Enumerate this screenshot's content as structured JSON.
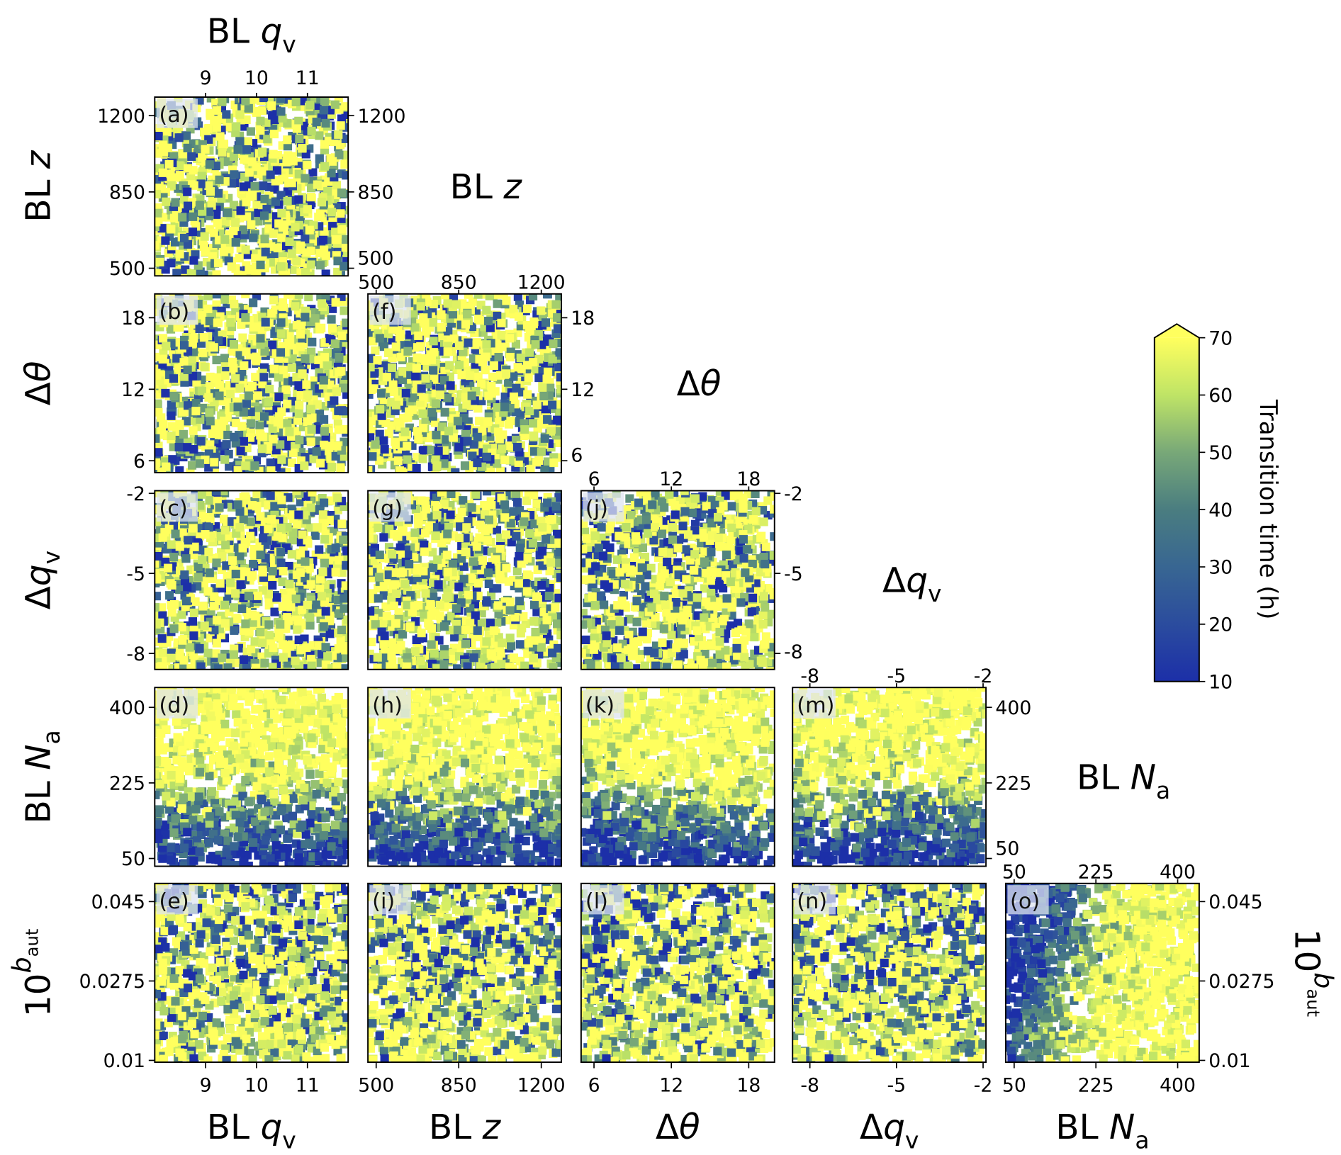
{
  "chart_data": {
    "type": "scatter",
    "layout": "corner-plot",
    "variables": [
      {
        "key": "qv",
        "label": [
          {
            "t": "BL "
          },
          {
            "t": "q",
            "i": true
          },
          {
            "t": "v",
            "s": "sub"
          }
        ],
        "range": [
          8.0,
          11.8
        ],
        "ticks": [
          9,
          10,
          11
        ],
        "tick_labels": [
          "9",
          "10",
          "11"
        ]
      },
      {
        "key": "z",
        "label": [
          {
            "t": "BL "
          },
          {
            "t": "z",
            "i": true
          }
        ],
        "range": [
          465,
          1285
        ],
        "ticks": [
          500,
          850,
          1200
        ],
        "tick_labels": [
          "500",
          "850",
          "1200"
        ]
      },
      {
        "key": "dtheta",
        "label": [
          {
            "t": "Δ"
          },
          {
            "t": "θ",
            "i": true
          }
        ],
        "range": [
          5.0,
          20.0
        ],
        "ticks": [
          6,
          12,
          18
        ],
        "tick_labels": [
          "6",
          "12",
          "18"
        ]
      },
      {
        "key": "dqv",
        "label": [
          {
            "t": "Δ"
          },
          {
            "t": "q",
            "i": true
          },
          {
            "t": "v",
            "s": "sub"
          }
        ],
        "range": [
          -8.6,
          -1.9
        ],
        "ticks": [
          -8,
          -5,
          -2
        ],
        "tick_labels": [
          "-8",
          "-5",
          "-2"
        ]
      },
      {
        "key": "Na",
        "label": [
          {
            "t": "BL "
          },
          {
            "t": "N",
            "i": true
          },
          {
            "t": "a",
            "s": "sub"
          }
        ],
        "range": [
          32,
          446
        ],
        "ticks": [
          50,
          225,
          400
        ],
        "tick_labels": [
          "50",
          "225",
          "400"
        ]
      },
      {
        "key": "baut",
        "label": [
          {
            "t": "10"
          },
          {
            "t": "b",
            "i": true,
            "s": "sup"
          },
          {
            "t": "aut",
            "s": "supsub"
          }
        ],
        "range": [
          0.0096,
          0.049
        ],
        "ticks": [
          0.01,
          0.0275,
          0.045
        ],
        "tick_labels": [
          "0.01",
          "0.0275",
          "0.045"
        ]
      }
    ],
    "panels": [
      {
        "label": "(a)",
        "x": "qv",
        "y": "z"
      },
      {
        "label": "(b)",
        "x": "qv",
        "y": "dtheta"
      },
      {
        "label": "(c)",
        "x": "qv",
        "y": "dqv"
      },
      {
        "label": "(d)",
        "x": "qv",
        "y": "Na"
      },
      {
        "label": "(e)",
        "x": "qv",
        "y": "baut"
      },
      {
        "label": "(f)",
        "x": "z",
        "y": "dtheta"
      },
      {
        "label": "(g)",
        "x": "z",
        "y": "dqv"
      },
      {
        "label": "(h)",
        "x": "z",
        "y": "Na"
      },
      {
        "label": "(i)",
        "x": "z",
        "y": "baut"
      },
      {
        "label": "(j)",
        "x": "dtheta",
        "y": "dqv"
      },
      {
        "label": "(k)",
        "x": "dtheta",
        "y": "Na"
      },
      {
        "label": "(l)",
        "x": "dtheta",
        "y": "baut"
      },
      {
        "label": "(m)",
        "x": "dqv",
        "y": "Na"
      },
      {
        "label": "(n)",
        "x": "dqv",
        "y": "baut"
      },
      {
        "label": "(o)",
        "x": "Na",
        "y": "baut"
      }
    ],
    "colorbar": {
      "label": "Transition time (h)",
      "range": [
        10,
        70
      ],
      "extend": "max",
      "ticks": [
        10,
        20,
        30,
        40,
        50,
        60,
        70
      ],
      "tick_labels": [
        "10",
        "20",
        "30",
        "40",
        "50",
        "60",
        "70"
      ],
      "colors": [
        "#1c2fa8",
        "#2b4c9e",
        "#386692",
        "#4a7d80",
        "#78a878",
        "#bfe466",
        "#ffff5e"
      ]
    },
    "marker": "square"
  }
}
